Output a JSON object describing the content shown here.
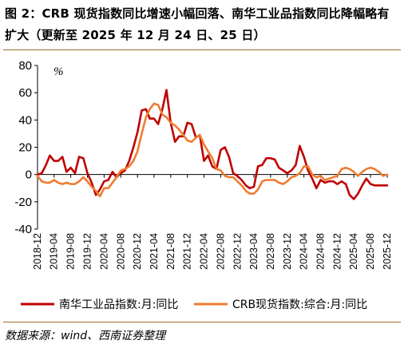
{
  "title": "图 2：CRB 现货指数同比增速小幅回落、南华工业品指数同比降幅略有扩大（更新至 2025 年 12 月 24 日、25 日）",
  "source": "数据来源：wind、西南证券整理",
  "chart_data": {
    "type": "line",
    "ylabel": "%",
    "ylim": [
      -40,
      80
    ],
    "yticks": [
      -40,
      -20,
      0,
      20,
      40,
      60,
      80
    ],
    "x_tick_labels": [
      "2018-12",
      "2019-04",
      "2019-08",
      "2019-12",
      "2020-04",
      "2020-08",
      "2020-12",
      "2021-04",
      "2021-08",
      "2021-12",
      "2022-04",
      "2022-08",
      "2022-12",
      "2023-04",
      "2023-08",
      "2023-12",
      "2024-04",
      "2024-08",
      "2024-12",
      "2025-04",
      "2025-08",
      "2025-12"
    ],
    "x_start": "2018-12",
    "x_end": "2025-12",
    "grid": false,
    "legend_position": "bottom",
    "colors": {
      "nanhua": "#c00000",
      "crb": "#ed7d31"
    },
    "series": [
      {
        "name": "南华工业品指数:月:同比",
        "key": "nanhua",
        "points": [
          [
            "2018-12-01",
            0
          ],
          [
            "2019-01-01",
            1
          ],
          [
            "2019-02-01",
            7
          ],
          [
            "2019-03-01",
            14
          ],
          [
            "2019-04-01",
            10
          ],
          [
            "2019-05-01",
            10
          ],
          [
            "2019-06-01",
            13
          ],
          [
            "2019-07-01",
            2
          ],
          [
            "2019-08-01",
            5
          ],
          [
            "2019-09-01",
            1
          ],
          [
            "2019-10-01",
            13
          ],
          [
            "2019-11-01",
            12
          ],
          [
            "2019-12-01",
            1
          ],
          [
            "2020-01-01",
            -6
          ],
          [
            "2020-02-01",
            -15
          ],
          [
            "2020-03-01",
            -11
          ],
          [
            "2020-04-01",
            -5
          ],
          [
            "2020-05-01",
            -4
          ],
          [
            "2020-06-01",
            2
          ],
          [
            "2020-07-01",
            -2
          ],
          [
            "2020-08-01",
            1
          ],
          [
            "2020-09-01",
            3
          ],
          [
            "2020-10-01",
            10
          ],
          [
            "2020-11-01",
            20
          ],
          [
            "2020-12-01",
            31
          ],
          [
            "2021-01-01",
            47
          ],
          [
            "2021-02-01",
            48
          ],
          [
            "2021-03-01",
            41
          ],
          [
            "2021-04-01",
            41
          ],
          [
            "2021-05-01",
            37
          ],
          [
            "2021-06-01",
            48
          ],
          [
            "2021-07-01",
            62
          ],
          [
            "2021-08-01",
            38
          ],
          [
            "2021-09-01",
            24
          ],
          [
            "2021-10-01",
            28
          ],
          [
            "2021-11-01",
            28
          ],
          [
            "2021-12-01",
            38
          ],
          [
            "2022-01-01",
            37
          ],
          [
            "2022-02-01",
            27
          ],
          [
            "2022-03-01",
            29
          ],
          [
            "2022-04-01",
            10
          ],
          [
            "2022-05-01",
            14
          ],
          [
            "2022-06-01",
            6
          ],
          [
            "2022-07-01",
            4
          ],
          [
            "2022-08-01",
            18
          ],
          [
            "2022-09-01",
            20
          ],
          [
            "2022-10-01",
            13
          ],
          [
            "2022-11-01",
            1
          ],
          [
            "2022-12-01",
            -1
          ],
          [
            "2023-01-01",
            -4
          ],
          [
            "2023-02-01",
            -8
          ],
          [
            "2023-03-01",
            -10
          ],
          [
            "2023-04-01",
            -9
          ],
          [
            "2023-05-01",
            6
          ],
          [
            "2023-06-01",
            7
          ],
          [
            "2023-07-01",
            12
          ],
          [
            "2023-08-01",
            12
          ],
          [
            "2023-09-01",
            11
          ],
          [
            "2023-10-01",
            5
          ],
          [
            "2023-11-01",
            3
          ],
          [
            "2023-12-01",
            1
          ],
          [
            "2024-01-01",
            3
          ],
          [
            "2024-02-01",
            7
          ],
          [
            "2024-03-01",
            21
          ],
          [
            "2024-04-01",
            13
          ],
          [
            "2024-05-01",
            3
          ],
          [
            "2024-06-01",
            -3
          ],
          [
            "2024-07-01",
            -10
          ],
          [
            "2024-08-01",
            -4
          ],
          [
            "2024-09-01",
            -6
          ],
          [
            "2024-10-01",
            -5
          ],
          [
            "2024-11-01",
            -5
          ],
          [
            "2024-12-01",
            -7
          ],
          [
            "2025-01-01",
            -5
          ],
          [
            "2025-02-01",
            -7
          ],
          [
            "2025-03-01",
            -15
          ],
          [
            "2025-04-01",
            -18
          ],
          [
            "2025-05-01",
            -14
          ],
          [
            "2025-06-01",
            -8
          ],
          [
            "2025-07-01",
            -3
          ],
          [
            "2025-08-01",
            -7
          ],
          [
            "2025-09-01",
            -8
          ],
          [
            "2025-10-01",
            -8
          ],
          [
            "2025-11-01",
            -8
          ],
          [
            "2025-12-01",
            -8
          ]
        ]
      },
      {
        "name": "CRB现货指数:综合:月:同比",
        "key": "crb",
        "points": [
          [
            "2018-12-01",
            -1
          ],
          [
            "2019-01-01",
            -5
          ],
          [
            "2019-02-01",
            -6
          ],
          [
            "2019-03-01",
            -6
          ],
          [
            "2019-04-01",
            -4
          ],
          [
            "2019-05-01",
            -6
          ],
          [
            "2019-06-01",
            -7
          ],
          [
            "2019-07-01",
            -6
          ],
          [
            "2019-08-01",
            -7
          ],
          [
            "2019-09-01",
            -7
          ],
          [
            "2019-10-01",
            -5
          ],
          [
            "2019-11-01",
            -2
          ],
          [
            "2019-12-01",
            -5
          ],
          [
            "2020-01-01",
            -9
          ],
          [
            "2020-02-01",
            -12
          ],
          [
            "2020-03-01",
            -16
          ],
          [
            "2020-04-01",
            -10
          ],
          [
            "2020-05-01",
            -10
          ],
          [
            "2020-06-01",
            -6
          ],
          [
            "2020-07-01",
            -2
          ],
          [
            "2020-08-01",
            3
          ],
          [
            "2020-09-01",
            4
          ],
          [
            "2020-10-01",
            6
          ],
          [
            "2020-11-01",
            10
          ],
          [
            "2020-12-01",
            17
          ],
          [
            "2021-01-01",
            30
          ],
          [
            "2021-02-01",
            42
          ],
          [
            "2021-03-01",
            48
          ],
          [
            "2021-04-01",
            52
          ],
          [
            "2021-05-01",
            51
          ],
          [
            "2021-06-01",
            44
          ],
          [
            "2021-07-01",
            42
          ],
          [
            "2021-08-01",
            38
          ],
          [
            "2021-09-01",
            36
          ],
          [
            "2021-10-01",
            33
          ],
          [
            "2021-11-01",
            29
          ],
          [
            "2021-12-01",
            25
          ],
          [
            "2022-01-01",
            24
          ],
          [
            "2022-02-01",
            27
          ],
          [
            "2022-03-01",
            29
          ],
          [
            "2022-04-01",
            22
          ],
          [
            "2022-05-01",
            17
          ],
          [
            "2022-06-01",
            12
          ],
          [
            "2022-07-01",
            4
          ],
          [
            "2022-08-01",
            3
          ],
          [
            "2022-09-01",
            -1
          ],
          [
            "2022-10-01",
            -2
          ],
          [
            "2022-11-01",
            -2
          ],
          [
            "2022-12-01",
            -5
          ],
          [
            "2023-01-01",
            -8
          ],
          [
            "2023-02-01",
            -12
          ],
          [
            "2023-03-01",
            -14
          ],
          [
            "2023-04-01",
            -14
          ],
          [
            "2023-05-01",
            -11
          ],
          [
            "2023-06-01",
            -5
          ],
          [
            "2023-07-01",
            -4
          ],
          [
            "2023-08-01",
            -4
          ],
          [
            "2023-09-01",
            -4
          ],
          [
            "2023-10-01",
            -6
          ],
          [
            "2023-11-01",
            -7
          ],
          [
            "2023-12-01",
            -5
          ],
          [
            "2024-01-01",
            -2
          ],
          [
            "2024-02-01",
            -1
          ],
          [
            "2024-03-01",
            1
          ],
          [
            "2024-04-01",
            6
          ],
          [
            "2024-05-01",
            6
          ],
          [
            "2024-06-01",
            0
          ],
          [
            "2024-07-01",
            -2
          ],
          [
            "2024-08-01",
            -1
          ],
          [
            "2024-09-01",
            -4
          ],
          [
            "2024-10-01",
            -3
          ],
          [
            "2024-11-01",
            -2
          ],
          [
            "2024-12-01",
            -1
          ],
          [
            "2025-01-01",
            4
          ],
          [
            "2025-02-01",
            5
          ],
          [
            "2025-03-01",
            4
          ],
          [
            "2025-04-01",
            2
          ],
          [
            "2025-05-01",
            -1
          ],
          [
            "2025-06-01",
            2
          ],
          [
            "2025-07-01",
            4
          ],
          [
            "2025-08-01",
            5
          ],
          [
            "2025-09-01",
            4
          ],
          [
            "2025-10-01",
            2
          ],
          [
            "2025-11-01",
            -1
          ],
          [
            "2025-12-01",
            0
          ]
        ]
      }
    ]
  }
}
